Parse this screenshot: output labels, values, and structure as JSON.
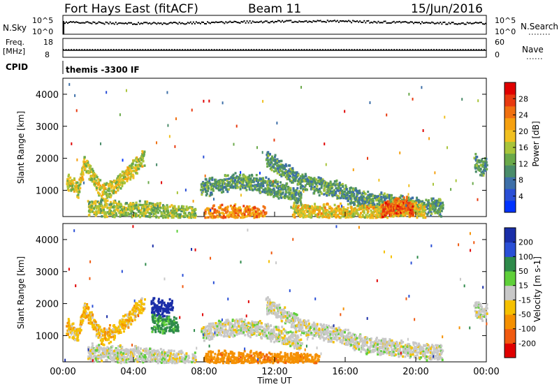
{
  "header": {
    "station": "Fort Hays East (fitACF)",
    "beam": "Beam 11",
    "date": "15/Jun/2016"
  },
  "summary_panels": {
    "nsky_label": "N.Sky",
    "nsky_ticks": [
      "10^5",
      "10^0"
    ],
    "nsearch_label": "N.Search",
    "nsearch_ticks": [
      "10^5",
      "10^0"
    ],
    "freq_label_1": "Freq.",
    "freq_label_2": "[MHz]",
    "freq_ticks": [
      "18",
      "8"
    ],
    "nave_label": "Nave",
    "nave_ticks": [
      "60",
      "0"
    ],
    "cpid_label": "CPID",
    "cpid_text": "themis -3300 IF"
  },
  "chart_data": [
    {
      "type": "heatmap",
      "name": "power",
      "ylabel": "Slant Range [km]",
      "yticks": [
        1000,
        2000,
        3000,
        4000
      ],
      "ylim": [
        180,
        4500
      ],
      "xlim": [
        0,
        24
      ],
      "colorbar_label": "Power [dB]",
      "colorbar_ticks": [
        "28",
        "24",
        "20",
        "16",
        "12",
        "8",
        "4"
      ],
      "colorbar_colors": [
        "#0033ff",
        "#2a4fd6",
        "#3d6fa8",
        "#4a8c6a",
        "#6aa94a",
        "#a8c43a",
        "#f0c020",
        "#f5a010",
        "#f07010",
        "#e83a10",
        "#e00000"
      ],
      "echo_bands": [
        {
          "points": [
            [
              0.2,
              1300
            ],
            [
              0.8,
              1050
            ],
            [
              1.2,
              1900
            ],
            [
              1.6,
              1500
            ],
            [
              2.2,
              950
            ],
            [
              3.0,
              1200
            ],
            [
              3.6,
              1550
            ],
            [
              4.1,
              1800
            ],
            [
              4.6,
              2100
            ]
          ],
          "power": 16
        },
        {
          "points": [
            [
              1.4,
              500
            ],
            [
              2.5,
              480
            ],
            [
              3.5,
              420
            ],
            [
              4.5,
              440
            ],
            [
              5.5,
              380
            ],
            [
              6.5,
              300
            ],
            [
              7.5,
              260
            ]
          ],
          "power": 14
        },
        {
          "points": [
            [
              8.0,
              260
            ],
            [
              9.0,
              300
            ],
            [
              10.5,
              290
            ],
            [
              11.5,
              240
            ]
          ],
          "power": 22
        },
        {
          "points": [
            [
              7.8,
              1100
            ],
            [
              9.5,
              1300
            ],
            [
              11.0,
              1250
            ],
            [
              12.5,
              1000
            ],
            [
              13.5,
              800
            ]
          ],
          "power": 10
        },
        {
          "points": [
            [
              11.5,
              2000
            ],
            [
              13.5,
              1300
            ],
            [
              15.5,
              1050
            ],
            [
              17.0,
              750
            ],
            [
              18.5,
              650
            ],
            [
              20.0,
              550
            ],
            [
              21.5,
              500
            ]
          ],
          "power": 10
        },
        {
          "points": [
            [
              13.0,
              400
            ],
            [
              15.0,
              350
            ],
            [
              17.0,
              320
            ],
            [
              18.5,
              400
            ],
            [
              19.5,
              450
            ],
            [
              20.5,
              380
            ]
          ],
          "power": 18
        },
        {
          "points": [
            [
              18.0,
              420
            ],
            [
              18.7,
              520
            ],
            [
              19.3,
              580
            ],
            [
              19.8,
              460
            ]
          ],
          "power": 26
        },
        {
          "points": [
            [
              23.3,
              1900
            ],
            [
              23.7,
              1750
            ],
            [
              24.0,
              1800
            ]
          ],
          "power": 10
        }
      ]
    },
    {
      "type": "heatmap",
      "name": "velocity",
      "ylabel": "Slant Range [km]",
      "yticks": [
        1000,
        2000,
        3000,
        4000
      ],
      "ylim": [
        180,
        4500
      ],
      "xlabel": "Time UT",
      "xticks": [
        "00:00",
        "04:00",
        "08:00",
        "12:00",
        "16:00",
        "20:00",
        "00:00"
      ],
      "xlim": [
        0,
        24
      ],
      "colorbar_label": "Velocity [m s-1]",
      "colorbar_ticks": [
        "200",
        "100",
        "50",
        "15",
        "-15",
        "-50",
        "-100",
        "-200"
      ],
      "colorbar_colors": [
        "#1a2ea8",
        "#2a4fd6",
        "#2e8a4a",
        "#5fcf3a",
        "#c8c8c8",
        "#f5c000",
        "#f59000",
        "#f05a10",
        "#e00000"
      ],
      "echo_bands": [
        {
          "points": [
            [
              0.2,
              1300
            ],
            [
              0.8,
              1050
            ],
            [
              1.2,
              1900
            ],
            [
              1.6,
              1500
            ],
            [
              2.2,
              950
            ],
            [
              3.0,
              1200
            ],
            [
              3.6,
              1550
            ],
            [
              4.1,
              1800
            ],
            [
              4.6,
              2100
            ]
          ],
          "velocity": -30
        },
        {
          "points": [
            [
              1.4,
              500
            ],
            [
              2.5,
              480
            ],
            [
              3.5,
              420
            ],
            [
              4.5,
              440
            ],
            [
              5.5,
              380
            ],
            [
              6.5,
              300
            ],
            [
              7.5,
              260
            ]
          ],
          "velocity": 0
        },
        {
          "points": [
            [
              8.0,
              260
            ],
            [
              9.0,
              300
            ],
            [
              10.5,
              290
            ],
            [
              11.5,
              240
            ],
            [
              13.0,
              260
            ],
            [
              14.5,
              230
            ]
          ],
          "velocity": -60
        },
        {
          "points": [
            [
              7.8,
              1100
            ],
            [
              9.5,
              1300
            ],
            [
              11.0,
              1250
            ],
            [
              12.5,
              1000
            ],
            [
              13.5,
              800
            ]
          ],
          "velocity": 0
        },
        {
          "points": [
            [
              11.5,
              2000
            ],
            [
              13.5,
              1300
            ],
            [
              15.5,
              1050
            ],
            [
              17.0,
              750
            ],
            [
              18.5,
              650
            ],
            [
              20.0,
              550
            ],
            [
              21.5,
              500
            ]
          ],
          "velocity": 0
        },
        {
          "points": [
            [
              5.0,
              1950
            ],
            [
              5.6,
              1900
            ],
            [
              6.2,
              1950
            ]
          ],
          "velocity": 200
        },
        {
          "points": [
            [
              5.0,
              1400
            ],
            [
              5.8,
              1380
            ],
            [
              6.5,
              1350
            ]
          ],
          "velocity": 40
        },
        {
          "points": [
            [
              23.3,
              1900
            ],
            [
              23.7,
              1750
            ],
            [
              24.0,
              1800
            ]
          ],
          "velocity": 0
        }
      ]
    }
  ]
}
